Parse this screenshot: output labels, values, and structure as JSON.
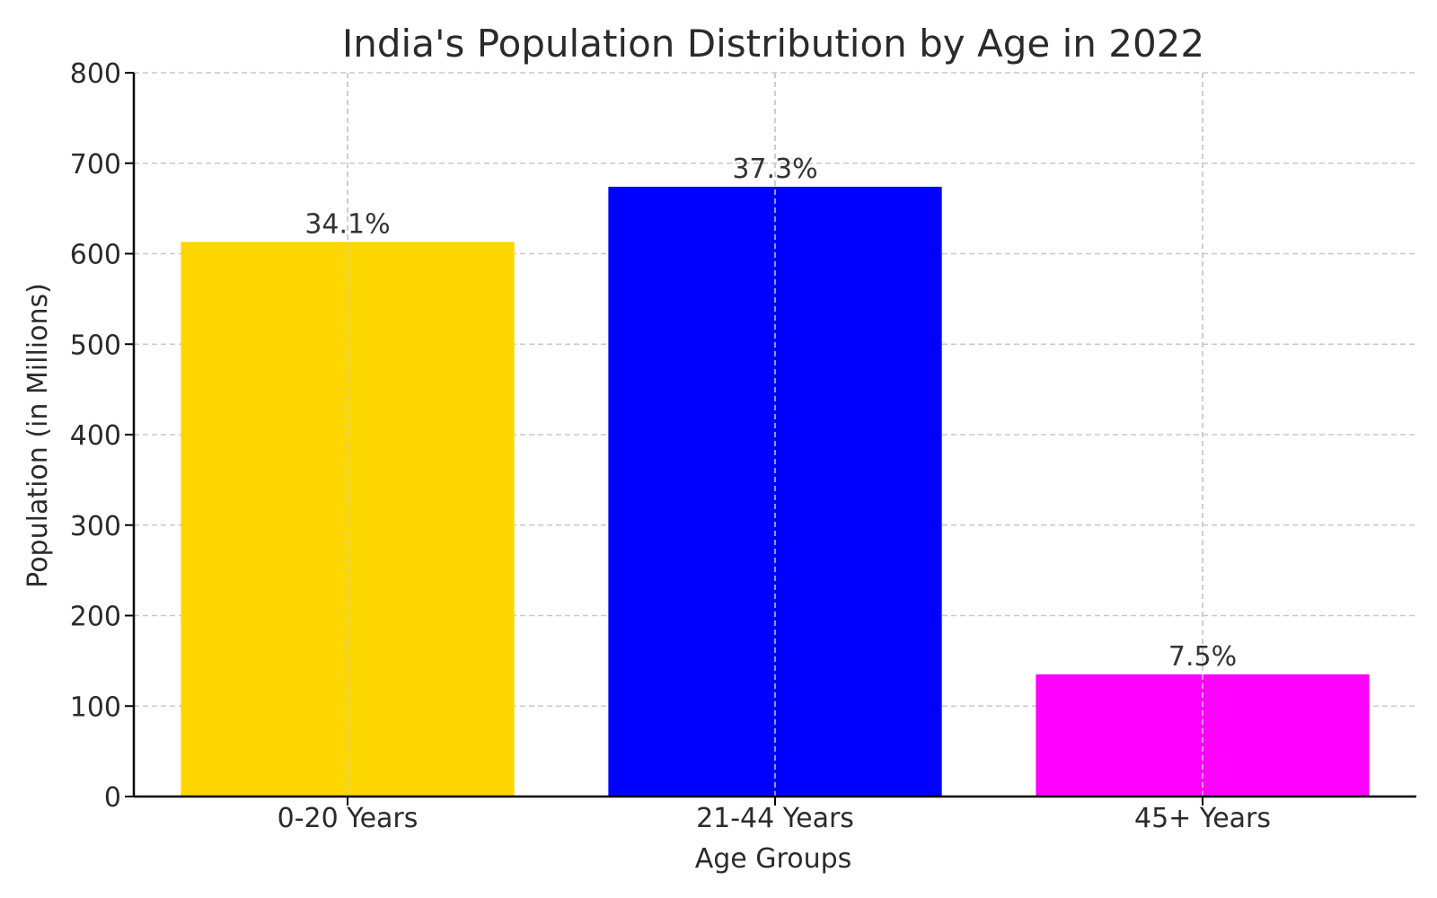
{
  "chart_data": {
    "type": "bar",
    "title": "India's Population Distribution by Age in 2022",
    "xlabel": "Age Groups",
    "ylabel": "Population (in Millions)",
    "categories": [
      "0-20 Years",
      "21-44 Years",
      "45+ Years"
    ],
    "values": [
      613,
      674,
      135
    ],
    "labels": [
      "34.1%",
      "37.3%",
      "7.5%"
    ],
    "colors": [
      "#FFD700",
      "#0000FF",
      "#FF00FF"
    ],
    "ylim": [
      0,
      800
    ],
    "yticks": [
      0,
      100,
      200,
      300,
      400,
      500,
      600,
      700,
      800
    ],
    "grid": true
  }
}
